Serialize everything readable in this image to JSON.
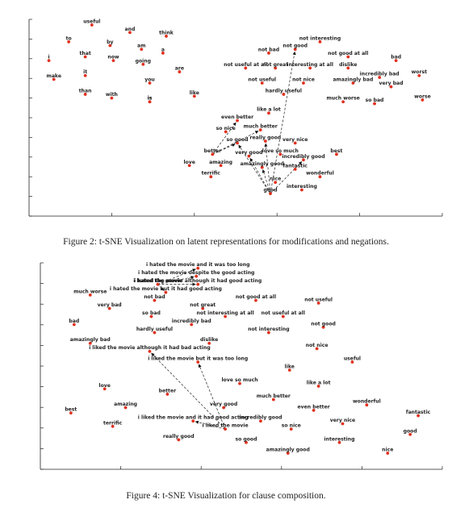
{
  "figure2": {
    "caption": "Figure 2: t-SNE Visualization on latent representations for modifications and negations.",
    "chart_data": {
      "type": "scatter",
      "title": "",
      "xlabel": "",
      "ylabel": "",
      "grid": false,
      "point_color": "#e0301e",
      "arrow_style": "dashed",
      "points": [
        {
          "label": "useful",
          "x": 3.8,
          "y": 10.2
        },
        {
          "label": "and",
          "x": 6.1,
          "y": 9.8
        },
        {
          "label": "think",
          "x": 8.3,
          "y": 9.6
        },
        {
          "label": "to",
          "x": 2.4,
          "y": 9.3
        },
        {
          "label": "by",
          "x": 4.9,
          "y": 9.1
        },
        {
          "label": "am",
          "x": 6.8,
          "y": 8.9
        },
        {
          "label": "a",
          "x": 8.1,
          "y": 8.7
        },
        {
          "label": "that",
          "x": 3.4,
          "y": 8.5
        },
        {
          "label": "now",
          "x": 5.1,
          "y": 8.3
        },
        {
          "label": "going",
          "x": 6.9,
          "y": 8.1
        },
        {
          "label": "are",
          "x": 9.1,
          "y": 7.7
        },
        {
          "label": "i",
          "x": 1.2,
          "y": 8.3
        },
        {
          "label": "it",
          "x": 3.4,
          "y": 7.5
        },
        {
          "label": "is",
          "x": 5.1,
          "y": 7.3
        },
        {
          "label": "you",
          "x": 7.3,
          "y": 7.1
        },
        {
          "label": "make",
          "x": 1.5,
          "y": 7.3
        },
        {
          "label": "than",
          "x": 3.4,
          "y": 6.5
        },
        {
          "label": "with",
          "x": 5.0,
          "y": 6.3
        },
        {
          "label": "is",
          "x": 7.3,
          "y": 6.1
        },
        {
          "label": "like",
          "x": 10.0,
          "y": 6.4
        },
        {
          "label": "not interesting",
          "x": 17.6,
          "y": 9.3
        },
        {
          "label": "not good",
          "x": 16.1,
          "y": 8.9
        },
        {
          "label": "not bad",
          "x": 14.5,
          "y": 8.7
        },
        {
          "label": "not good at all",
          "x": 19.3,
          "y": 8.5
        },
        {
          "label": "bad",
          "x": 22.2,
          "y": 8.3
        },
        {
          "label": "not useful at all",
          "x": 13.1,
          "y": 7.9
        },
        {
          "label": "not great",
          "x": 14.9,
          "y": 7.9
        },
        {
          "label": "interesting at all",
          "x": 17.0,
          "y": 7.9
        },
        {
          "label": "dislike",
          "x": 19.3,
          "y": 7.9
        },
        {
          "label": "worst",
          "x": 23.6,
          "y": 7.5
        },
        {
          "label": "incredibly bad",
          "x": 21.2,
          "y": 7.4
        },
        {
          "label": "not useful",
          "x": 14.1,
          "y": 7.1
        },
        {
          "label": "not nice",
          "x": 16.6,
          "y": 7.1
        },
        {
          "label": "amazingly bad",
          "x": 19.6,
          "y": 7.1
        },
        {
          "label": "very bad",
          "x": 21.9,
          "y": 6.9
        },
        {
          "label": "hardly useful",
          "x": 15.4,
          "y": 6.5
        },
        {
          "label": "much worse",
          "x": 19.0,
          "y": 6.1
        },
        {
          "label": "so bad",
          "x": 20.9,
          "y": 6.0
        },
        {
          "label": "worse",
          "x": 23.8,
          "y": 6.2
        },
        {
          "label": "like a lot",
          "x": 14.5,
          "y": 5.5
        },
        {
          "label": "even better",
          "x": 12.6,
          "y": 5.1
        },
        {
          "label": "so nice",
          "x": 11.9,
          "y": 4.5
        },
        {
          "label": "much better",
          "x": 14.0,
          "y": 4.6
        },
        {
          "label": "so good",
          "x": 12.6,
          "y": 3.9
        },
        {
          "label": "really good",
          "x": 14.3,
          "y": 4.0
        },
        {
          "label": "very nice",
          "x": 16.1,
          "y": 3.9
        },
        {
          "label": "better",
          "x": 11.1,
          "y": 3.3
        },
        {
          "label": "very good",
          "x": 13.3,
          "y": 3.2
        },
        {
          "label": "love so much",
          "x": 15.2,
          "y": 3.3
        },
        {
          "label": "best",
          "x": 18.6,
          "y": 3.3
        },
        {
          "label": "incredibly good",
          "x": 16.6,
          "y": 3.0
        },
        {
          "label": "love",
          "x": 9.7,
          "y": 2.7
        },
        {
          "label": "amazing",
          "x": 11.6,
          "y": 2.7
        },
        {
          "label": "amazingly good",
          "x": 14.1,
          "y": 2.6
        },
        {
          "label": "fantastic",
          "x": 16.1,
          "y": 2.5
        },
        {
          "label": "terrific",
          "x": 11.0,
          "y": 2.1
        },
        {
          "label": "wonderful",
          "x": 17.6,
          "y": 2.1
        },
        {
          "label": "nice",
          "x": 14.9,
          "y": 1.8
        },
        {
          "label": "interesting",
          "x": 16.5,
          "y": 1.4
        },
        {
          "label": "good",
          "x": 14.6,
          "y": 1.2
        }
      ],
      "arrows": [
        {
          "from": "good",
          "to": "not good"
        },
        {
          "from": "good",
          "to": "so good"
        },
        {
          "from": "good",
          "to": "very good"
        },
        {
          "from": "good",
          "to": "amazingly good"
        },
        {
          "from": "good",
          "to": "incredibly good"
        },
        {
          "from": "good",
          "to": "really good"
        },
        {
          "from": "better",
          "to": "so good"
        },
        {
          "from": "better",
          "to": "even better"
        },
        {
          "from": "better",
          "to": "much better"
        }
      ]
    }
  },
  "figure4": {
    "caption": "Figure 4: t-SNE Visualization for clause composition.",
    "chart_data": {
      "type": "scatter",
      "title": "",
      "xlabel": "",
      "ylabel": "",
      "grid": false,
      "point_color": "#e0301e",
      "arrow_style": "dashed",
      "points": [
        {
          "label": "i hated the movie and it was too long",
          "x": 9.8,
          "y": 9.8
        },
        {
          "label": "i hated the movie despite the good acting",
          "x": 9.7,
          "y": 9.5
        },
        {
          "label": "i hated the movie",
          "x": 7.3,
          "y": 9.2
        },
        {
          "label": "i hated the movie although it had good acting",
          "x": 9.8,
          "y": 9.2
        },
        {
          "label": "i hated the movie but it had good acting",
          "x": 7.8,
          "y": 8.9
        },
        {
          "label": "much worse",
          "x": 3.1,
          "y": 8.8
        },
        {
          "label": "not bad",
          "x": 7.1,
          "y": 8.6
        },
        {
          "label": "not good at all",
          "x": 13.4,
          "y": 8.6
        },
        {
          "label": "not useful",
          "x": 17.3,
          "y": 8.5
        },
        {
          "label": "very bad",
          "x": 4.3,
          "y": 8.3
        },
        {
          "label": "not great",
          "x": 10.1,
          "y": 8.3
        },
        {
          "label": "so bad",
          "x": 6.9,
          "y": 8.0
        },
        {
          "label": "not interesting at all",
          "x": 11.5,
          "y": 8.0
        },
        {
          "label": "not useful at all",
          "x": 15.1,
          "y": 8.0
        },
        {
          "label": "bad",
          "x": 2.1,
          "y": 7.7
        },
        {
          "label": "incredibly bad",
          "x": 9.4,
          "y": 7.7
        },
        {
          "label": "not good",
          "x": 17.6,
          "y": 7.6
        },
        {
          "label": "hardly useful",
          "x": 7.1,
          "y": 7.4
        },
        {
          "label": "not interesting",
          "x": 14.2,
          "y": 7.4
        },
        {
          "label": "amazingly bad",
          "x": 3.1,
          "y": 7.0
        },
        {
          "label": "dislike",
          "x": 10.5,
          "y": 7.0
        },
        {
          "label": "not nice",
          "x": 17.2,
          "y": 6.8
        },
        {
          "label": "i liked the movie although it had bad acting",
          "x": 6.8,
          "y": 6.7
        },
        {
          "label": "i liked the movie but it was too long",
          "x": 9.8,
          "y": 6.3
        },
        {
          "label": "useful",
          "x": 19.4,
          "y": 6.3
        },
        {
          "label": "like",
          "x": 15.5,
          "y": 6.0
        },
        {
          "label": "love so much",
          "x": 12.4,
          "y": 5.5
        },
        {
          "label": "like a lot",
          "x": 17.3,
          "y": 5.4
        },
        {
          "label": "love",
          "x": 4.0,
          "y": 5.3
        },
        {
          "label": "better",
          "x": 7.9,
          "y": 5.1
        },
        {
          "label": "much better",
          "x": 14.5,
          "y": 4.9
        },
        {
          "label": "wonderful",
          "x": 20.3,
          "y": 4.7
        },
        {
          "label": "amazing",
          "x": 5.3,
          "y": 4.6
        },
        {
          "label": "very good",
          "x": 11.4,
          "y": 4.6
        },
        {
          "label": "even better",
          "x": 17.0,
          "y": 4.5
        },
        {
          "label": "best",
          "x": 1.9,
          "y": 4.4
        },
        {
          "label": "fantastic",
          "x": 23.5,
          "y": 4.3
        },
        {
          "label": "i liked the movie and it had good acting",
          "x": 9.5,
          "y": 4.1
        },
        {
          "label": "incredibly good",
          "x": 13.7,
          "y": 4.1
        },
        {
          "label": "very nice",
          "x": 18.8,
          "y": 4.0
        },
        {
          "label": "terrific",
          "x": 4.5,
          "y": 3.9
        },
        {
          "label": "i liked the movie",
          "x": 11.5,
          "y": 3.8
        },
        {
          "label": "so nice",
          "x": 15.6,
          "y": 3.8
        },
        {
          "label": "good",
          "x": 23.0,
          "y": 3.6
        },
        {
          "label": "really good",
          "x": 8.6,
          "y": 3.4
        },
        {
          "label": "so good",
          "x": 12.8,
          "y": 3.3
        },
        {
          "label": "interesting",
          "x": 18.6,
          "y": 3.3
        },
        {
          "label": "amazingly good",
          "x": 15.4,
          "y": 2.9
        },
        {
          "label": "nice",
          "x": 21.6,
          "y": 2.9
        }
      ],
      "arrows": [
        {
          "from": "i hated the movie",
          "to": "i hated the movie and it was too long"
        },
        {
          "from": "i hated the movie",
          "to": "i hated the movie despite the good acting"
        },
        {
          "from": "i hated the movie",
          "to": "i hated the movie although it had good acting"
        },
        {
          "from": "i hated the movie",
          "to": "i hated the movie but it had good acting"
        },
        {
          "from": "i liked the movie",
          "to": "i liked the movie although it had bad acting"
        },
        {
          "from": "i liked the movie",
          "to": "i liked the movie but it was too long"
        },
        {
          "from": "i liked the movie",
          "to": "i liked the movie and it had good acting"
        }
      ]
    }
  }
}
